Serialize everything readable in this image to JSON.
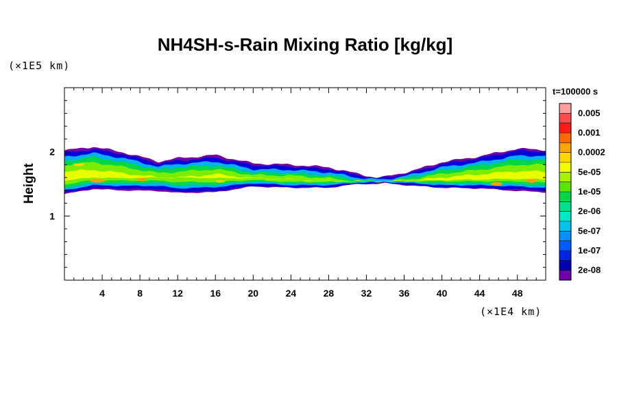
{
  "chart_data": {
    "type": "heatmap",
    "title": "NH4SH-s-Rain Mixing Ratio [kg/kg]",
    "xlabel": "",
    "ylabel": "Height",
    "x_unit": "(×1E4 km)",
    "y_unit": "(×1E5 km)",
    "time_label": "t=100000 s",
    "xlim": [
      0,
      51
    ],
    "ylim": [
      0,
      3
    ],
    "x_ticks": [
      4,
      8,
      12,
      16,
      20,
      24,
      28,
      32,
      36,
      40,
      44,
      48
    ],
    "y_ticks": [
      1,
      2
    ],
    "grid": false,
    "legend_position": "right",
    "colorbar": {
      "labels": [
        "0.005",
        "0.001",
        "0.0002",
        "5e-05",
        "1e-05",
        "2e-06",
        "5e-07",
        "1e-07",
        "2e-08"
      ],
      "colors": [
        "#ff9f9f",
        "#ff4b4b",
        "#ff1a1a",
        "#ff6a00",
        "#ffa400",
        "#ffd700",
        "#f2ff00",
        "#a8f200",
        "#58e600",
        "#00d84a",
        "#00e08c",
        "#00e8c8",
        "#00c4f0",
        "#0090ff",
        "#005cff",
        "#0024e6",
        "#0000b0",
        "#7000a8"
      ]
    },
    "bands": [
      {
        "name": "outer",
        "color": "#7000a8",
        "center": [
          [
            0,
            1.68
          ],
          [
            3,
            1.75
          ],
          [
            6,
            1.7
          ],
          [
            10,
            1.62
          ],
          [
            12,
            1.63
          ],
          [
            16,
            1.66
          ],
          [
            20,
            1.64
          ],
          [
            24,
            1.62
          ],
          [
            28,
            1.6
          ],
          [
            31,
            1.58
          ],
          [
            33,
            1.55
          ],
          [
            34,
            1.56
          ],
          [
            37,
            1.59
          ],
          [
            40,
            1.64
          ],
          [
            44,
            1.68
          ],
          [
            48,
            1.72
          ],
          [
            51,
            1.7
          ]
        ],
        "half": [
          [
            0,
            0.34
          ],
          [
            3,
            0.33
          ],
          [
            6,
            0.3
          ],
          [
            10,
            0.23
          ],
          [
            12,
            0.27
          ],
          [
            16,
            0.29
          ],
          [
            20,
            0.18
          ],
          [
            24,
            0.18
          ],
          [
            28,
            0.16
          ],
          [
            31,
            0.08
          ],
          [
            33,
            0.05
          ],
          [
            34,
            0.05
          ],
          [
            37,
            0.12
          ],
          [
            40,
            0.2
          ],
          [
            44,
            0.25
          ],
          [
            48,
            0.33
          ],
          [
            51,
            0.33
          ]
        ]
      },
      {
        "name": "blue",
        "color": "#0000d8",
        "center": [
          [
            0,
            1.67
          ],
          [
            3,
            1.74
          ],
          [
            6,
            1.7
          ],
          [
            10,
            1.62
          ],
          [
            12,
            1.62
          ],
          [
            16,
            1.65
          ],
          [
            20,
            1.63
          ],
          [
            24,
            1.61
          ],
          [
            28,
            1.59
          ],
          [
            31,
            1.57
          ],
          [
            33,
            1.55
          ],
          [
            34,
            1.56
          ],
          [
            37,
            1.58
          ],
          [
            40,
            1.63
          ],
          [
            44,
            1.67
          ],
          [
            48,
            1.72
          ],
          [
            51,
            1.7
          ]
        ],
        "half": [
          [
            0,
            0.31
          ],
          [
            3,
            0.3
          ],
          [
            6,
            0.27
          ],
          [
            10,
            0.2
          ],
          [
            12,
            0.24
          ],
          [
            16,
            0.26
          ],
          [
            20,
            0.16
          ],
          [
            24,
            0.16
          ],
          [
            28,
            0.14
          ],
          [
            31,
            0.07
          ],
          [
            33,
            0.04
          ],
          [
            34,
            0.04
          ],
          [
            37,
            0.1
          ],
          [
            40,
            0.18
          ],
          [
            44,
            0.23
          ],
          [
            48,
            0.3
          ],
          [
            51,
            0.3
          ]
        ]
      },
      {
        "name": "cyan",
        "color": "#00b0f0",
        "center": [
          [
            0,
            1.66
          ],
          [
            3,
            1.73
          ],
          [
            6,
            1.69
          ],
          [
            10,
            1.62
          ],
          [
            12,
            1.62
          ],
          [
            16,
            1.65
          ],
          [
            20,
            1.62
          ],
          [
            24,
            1.6
          ],
          [
            28,
            1.58
          ],
          [
            31,
            1.56
          ],
          [
            33,
            1.55
          ],
          [
            34,
            1.55
          ],
          [
            37,
            1.58
          ],
          [
            40,
            1.62
          ],
          [
            44,
            1.66
          ],
          [
            48,
            1.7
          ],
          [
            51,
            1.69
          ]
        ],
        "half": [
          [
            0,
            0.26
          ],
          [
            3,
            0.25
          ],
          [
            6,
            0.22
          ],
          [
            10,
            0.15
          ],
          [
            12,
            0.19
          ],
          [
            16,
            0.2
          ],
          [
            20,
            0.11
          ],
          [
            24,
            0.12
          ],
          [
            28,
            0.1
          ],
          [
            31,
            0.04
          ],
          [
            33,
            0.02
          ],
          [
            34,
            0.02
          ],
          [
            37,
            0.07
          ],
          [
            40,
            0.14
          ],
          [
            44,
            0.18
          ],
          [
            48,
            0.24
          ],
          [
            51,
            0.25
          ]
        ]
      },
      {
        "name": "green",
        "color": "#00d84a",
        "center": [
          [
            0,
            1.65
          ],
          [
            3,
            1.72
          ],
          [
            6,
            1.68
          ],
          [
            10,
            1.62
          ],
          [
            12,
            1.62
          ],
          [
            16,
            1.64
          ],
          [
            20,
            1.61
          ],
          [
            24,
            1.59
          ],
          [
            28,
            1.57
          ],
          [
            31,
            1.55
          ],
          [
            33,
            1.54
          ],
          [
            34,
            1.54
          ],
          [
            37,
            1.57
          ],
          [
            40,
            1.61
          ],
          [
            44,
            1.65
          ],
          [
            48,
            1.69
          ],
          [
            51,
            1.68
          ]
        ],
        "half": [
          [
            0,
            0.21
          ],
          [
            3,
            0.2
          ],
          [
            6,
            0.17
          ],
          [
            10,
            0.1
          ],
          [
            12,
            0.14
          ],
          [
            16,
            0.15
          ],
          [
            20,
            0.07
          ],
          [
            24,
            0.08
          ],
          [
            28,
            0.06
          ],
          [
            31,
            0.02
          ],
          [
            33,
            0.0
          ],
          [
            34,
            0.0
          ],
          [
            37,
            0.04
          ],
          [
            40,
            0.1
          ],
          [
            44,
            0.14
          ],
          [
            48,
            0.19
          ],
          [
            51,
            0.2
          ]
        ]
      },
      {
        "name": "lime",
        "color": "#7cec00",
        "center": [
          [
            0,
            1.64
          ],
          [
            3,
            1.7
          ],
          [
            6,
            1.66
          ],
          [
            10,
            1.61
          ],
          [
            12,
            1.61
          ],
          [
            16,
            1.63
          ],
          [
            20,
            1.6
          ],
          [
            24,
            1.58
          ],
          [
            28,
            1.56
          ],
          [
            31,
            1.54
          ],
          [
            33,
            1.54
          ],
          [
            34,
            1.54
          ],
          [
            37,
            1.56
          ],
          [
            40,
            1.6
          ],
          [
            44,
            1.63
          ],
          [
            48,
            1.67
          ],
          [
            51,
            1.66
          ]
        ],
        "half": [
          [
            0,
            0.15
          ],
          [
            3,
            0.14
          ],
          [
            6,
            0.11
          ],
          [
            10,
            0.06
          ],
          [
            12,
            0.08
          ],
          [
            16,
            0.1
          ],
          [
            20,
            0.04
          ],
          [
            24,
            0.05
          ],
          [
            28,
            0.03
          ],
          [
            31,
            0.0
          ],
          [
            33,
            0.0
          ],
          [
            34,
            0.0
          ],
          [
            37,
            0.02
          ],
          [
            40,
            0.06
          ],
          [
            44,
            0.09
          ],
          [
            48,
            0.13
          ],
          [
            51,
            0.14
          ]
        ]
      },
      {
        "name": "yellow",
        "color": "#e8ff00",
        "center": [
          [
            0,
            1.62
          ],
          [
            3,
            1.66
          ],
          [
            6,
            1.63
          ],
          [
            10,
            1.6
          ],
          [
            12,
            1.6
          ],
          [
            16,
            1.62
          ],
          [
            20,
            1.59
          ],
          [
            24,
            1.57
          ],
          [
            28,
            1.55
          ],
          [
            31,
            1.54
          ],
          [
            33,
            1.54
          ],
          [
            34,
            1.54
          ],
          [
            37,
            1.55
          ],
          [
            40,
            1.58
          ],
          [
            44,
            1.61
          ],
          [
            48,
            1.64
          ],
          [
            51,
            1.63
          ]
        ],
        "half": [
          [
            0,
            0.07
          ],
          [
            3,
            0.06
          ],
          [
            6,
            0.04
          ],
          [
            10,
            0.0
          ],
          [
            12,
            0.0
          ],
          [
            16,
            0.03
          ],
          [
            20,
            0.0
          ],
          [
            24,
            0.0
          ],
          [
            28,
            0.0
          ],
          [
            31,
            0.0
          ],
          [
            33,
            0.0
          ],
          [
            34,
            0.0
          ],
          [
            37,
            0.0
          ],
          [
            40,
            0.02
          ],
          [
            44,
            0.04
          ],
          [
            48,
            0.06
          ],
          [
            51,
            0.06
          ]
        ]
      }
    ],
    "hotspots": [
      {
        "x": 3.5,
        "y": 1.55,
        "rx": 0.8,
        "ry": 0.03,
        "color": "#ffa400"
      },
      {
        "x": 8.2,
        "y": 1.57,
        "rx": 0.5,
        "ry": 0.025,
        "color": "#ffa400"
      },
      {
        "x": 16.5,
        "y": 1.54,
        "rx": 0.5,
        "ry": 0.02,
        "color": "#ffd700"
      },
      {
        "x": 45.8,
        "y": 1.5,
        "rx": 0.6,
        "ry": 0.03,
        "color": "#ffa400"
      },
      {
        "x": 49.5,
        "y": 1.55,
        "rx": 0.6,
        "ry": 0.03,
        "color": "#ffa400"
      },
      {
        "x": 1.5,
        "y": 1.8,
        "rx": 0.6,
        "ry": 0.02,
        "color": "#ffd700"
      }
    ]
  }
}
